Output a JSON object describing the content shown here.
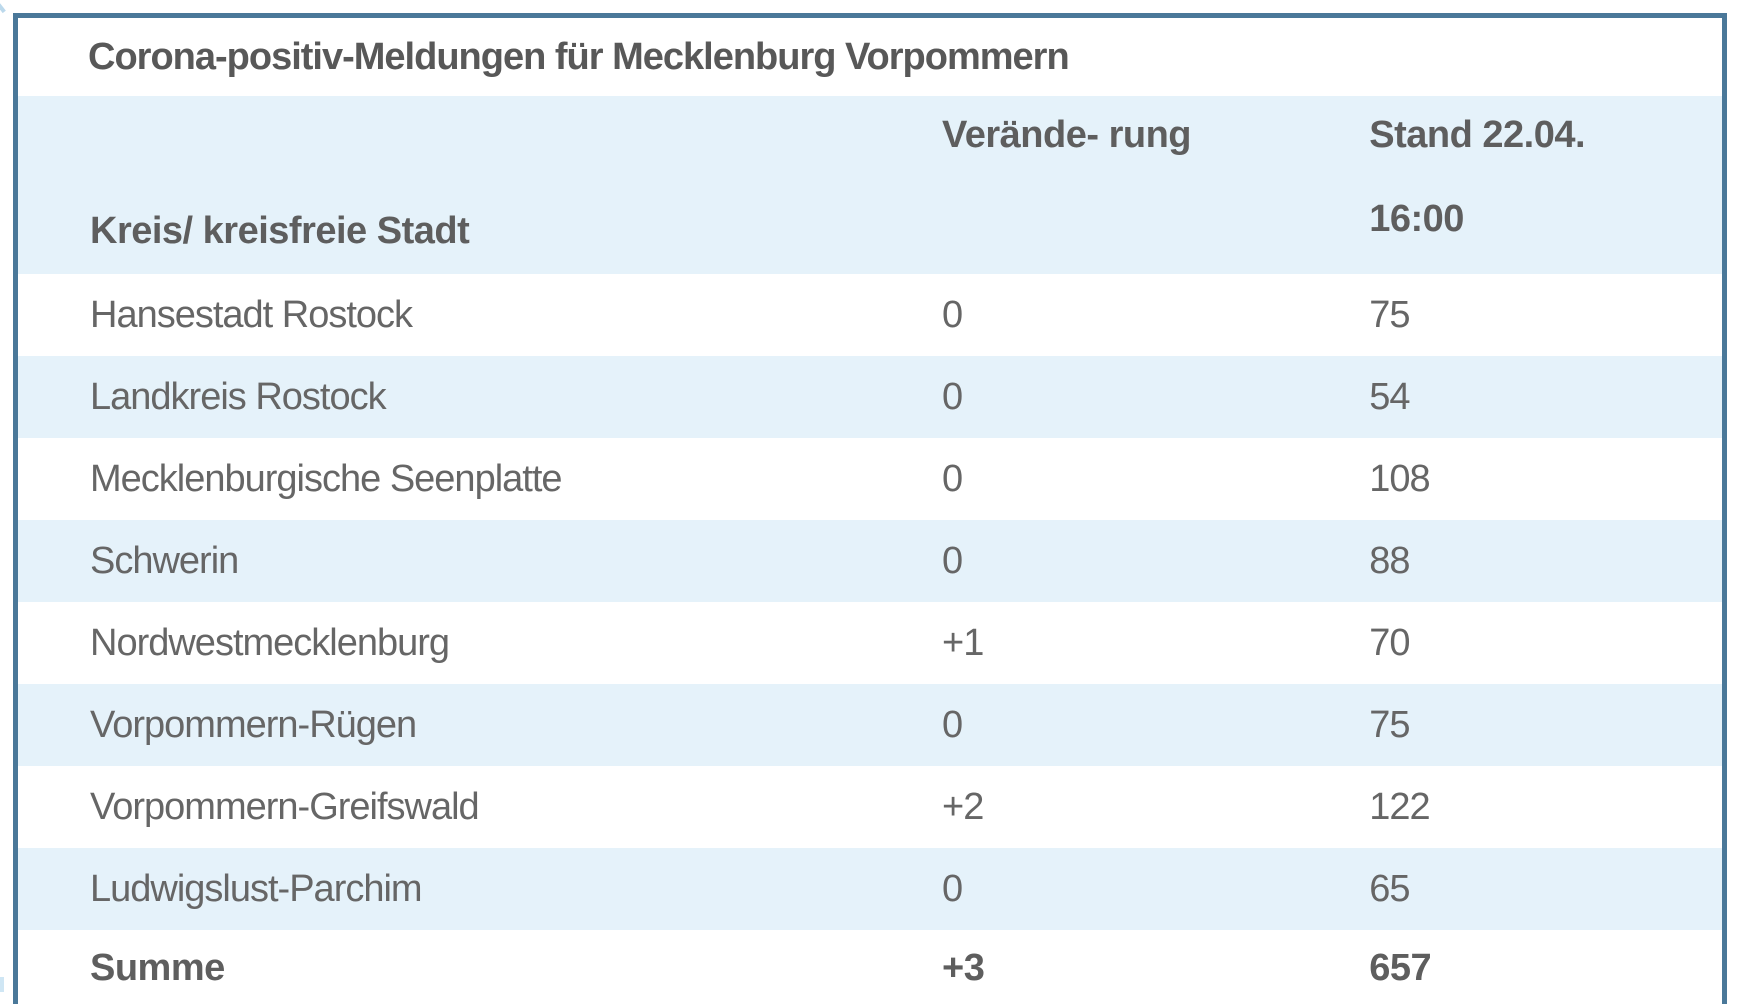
{
  "chart_data": {
    "type": "table",
    "title": "Corona-positiv-Meldungen für Mecklenburg Vorpommern",
    "columns": [
      "Kreis/ kreisfreie Stadt",
      "Verände- rung",
      "Stand 22.04. 16:00"
    ],
    "rows": [
      [
        "Hansestadt Rostock",
        "0",
        "75"
      ],
      [
        "Landkreis Rostock",
        "0",
        "54"
      ],
      [
        "Mecklenburgische Seenplatte",
        "0",
        "108"
      ],
      [
        "Schwerin",
        "0",
        "88"
      ],
      [
        "Nordwestmecklenburg",
        "+1",
        "70"
      ],
      [
        "Vorpommern-Rügen",
        "0",
        "75"
      ],
      [
        "Vorpommern-Greifswald",
        "+2",
        "122"
      ],
      [
        "Ludwigslust-Parchim",
        "0",
        "65"
      ]
    ],
    "total_row": [
      "Summe",
      "+3",
      "657"
    ]
  },
  "header": {
    "col3_lines": [
      "Stand 22.04.",
      "16:00"
    ]
  },
  "colors": {
    "table_border": "#4a7899",
    "row_highlight": "#e5f2fa",
    "text": "#666666"
  }
}
